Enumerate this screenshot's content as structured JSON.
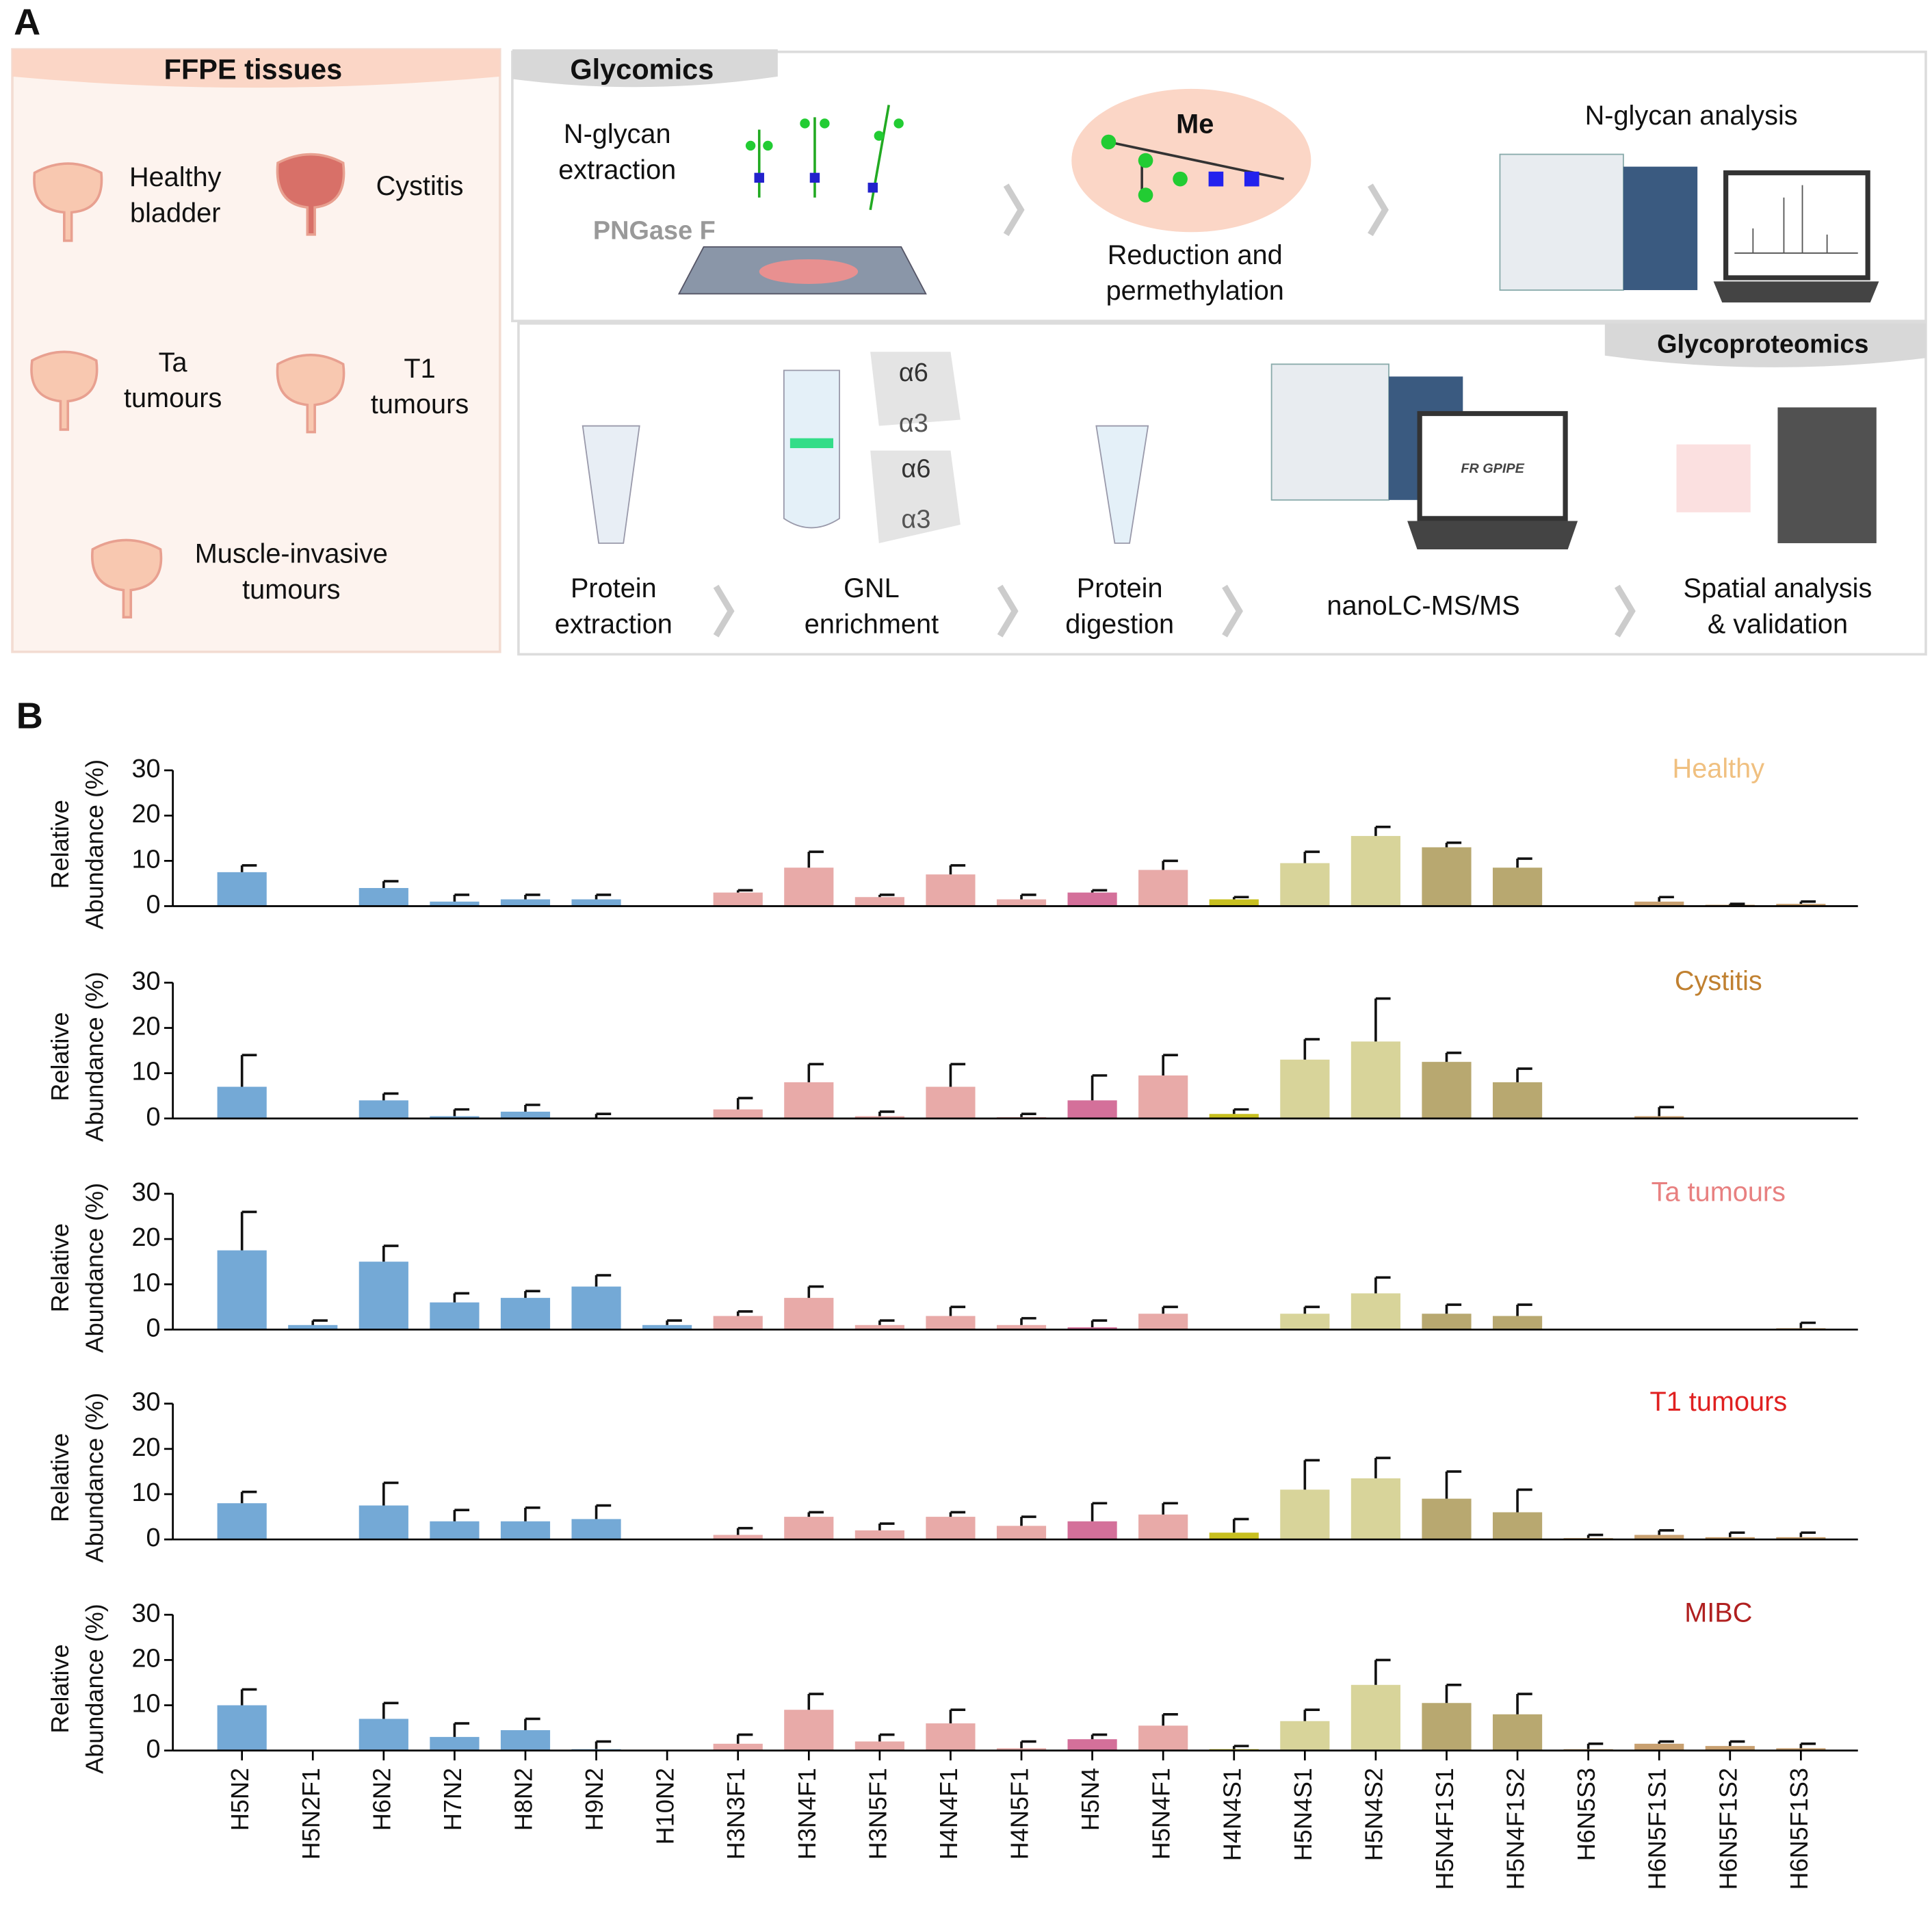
{
  "panel_a": {
    "label": "A",
    "tissues": {
      "title": "FFPE tissues",
      "groups": [
        [
          "Healthy",
          "bladder"
        ],
        [
          "Cystitis"
        ],
        [
          "Ta",
          "tumours"
        ],
        [
          "T1",
          "tumours"
        ],
        [
          "Muscle-invasive",
          "tumours"
        ]
      ]
    },
    "glycomics": {
      "title": "Glycomics",
      "steps": [
        [
          "N-glycan",
          "extraction"
        ],
        [
          "Reduction and",
          "permethylation"
        ],
        [
          "N-glycan analysis"
        ]
      ],
      "enzyme": "PNGase F",
      "reagent": "Me"
    },
    "glycoproteomics": {
      "title": "Glycoproteomics",
      "steps": [
        [
          "Protein",
          "extraction"
        ],
        [
          "GNL",
          "enrichment"
        ],
        [
          "Protein",
          "digestion"
        ],
        [
          "nanoLC-MS/MS"
        ],
        [
          "Spatial analysis",
          "& validation"
        ]
      ],
      "linkages": [
        "α6",
        "α3",
        "α6",
        "α3"
      ],
      "software": "FR GPIPE"
    }
  },
  "panel_b_label": "B",
  "x_axis": {
    "categories": [
      "H5N2",
      "H5N2F1",
      "H6N2",
      "H7N2",
      "H8N2",
      "H9N2",
      "H10N2",
      "H3N3F1",
      "H3N4F1",
      "H3N5F1",
      "H4N4F1",
      "H4N5F1",
      "H5N4",
      "H5N4F1",
      "H4N4S1",
      "H5N4S1",
      "H5N4S2",
      "H5N4F1S1",
      "H5N4F1S2",
      "H6N5S3",
      "H6N5F1S1",
      "H6N5F1S2",
      "H6N5F1S3"
    ],
    "colors": [
      "#74a9d6",
      "#74a9d6",
      "#74a9d6",
      "#74a9d6",
      "#74a9d6",
      "#74a9d6",
      "#74a9d6",
      "#e8aaa8",
      "#e8aaa8",
      "#e8aaa8",
      "#e8aaa8",
      "#e8aaa8",
      "#d4709a",
      "#e8aaa8",
      "#c8c020",
      "#d8d49a",
      "#d8d49a",
      "#b8a870",
      "#b8a870",
      "#c8a070",
      "#c8a070",
      "#c8a070",
      "#c8a070"
    ]
  },
  "chart_data": [
    {
      "type": "bar",
      "title": "Healthy",
      "title_color": "#f0c080",
      "ylabel": [
        "Relative",
        "Abundance (%)"
      ],
      "ylim": [
        0,
        30
      ],
      "yticks": [
        0,
        10,
        20,
        30
      ],
      "values": [
        7.5,
        0,
        4,
        1,
        1.5,
        1.5,
        0,
        3,
        8.5,
        2,
        7,
        1.5,
        3,
        8,
        1.5,
        9.5,
        15.5,
        13,
        8.5,
        0,
        1,
        0.3,
        0.5
      ],
      "errors": [
        1.5,
        0,
        1.5,
        1.5,
        1,
        1,
        0,
        0.5,
        3.5,
        0.5,
        2,
        1,
        0.5,
        2,
        0.5,
        2.5,
        2,
        1,
        2,
        0,
        1,
        0.2,
        0.5
      ]
    },
    {
      "type": "bar",
      "title": "Cystitis",
      "title_color": "#c08030",
      "ylabel": [
        "Relative",
        "Abundance (%)"
      ],
      "ylim": [
        0,
        30
      ],
      "yticks": [
        0,
        10,
        20,
        30
      ],
      "values": [
        7,
        0,
        4,
        0.5,
        1.5,
        0.2,
        0,
        2,
        8,
        0.5,
        7,
        0.3,
        4,
        9.5,
        1,
        13,
        17,
        12.5,
        8,
        0,
        0.5,
        0,
        0
      ],
      "errors": [
        7,
        0,
        1.5,
        1.5,
        1.5,
        0.8,
        0,
        2.5,
        4,
        1,
        5,
        0.7,
        5.5,
        4.5,
        1,
        4.5,
        9.5,
        2,
        3,
        0,
        2,
        0,
        0
      ]
    },
    {
      "type": "bar",
      "title": "Ta tumours",
      "title_color": "#e88080",
      "ylabel": [
        "Relative",
        "Abundance (%)"
      ],
      "ylim": [
        0,
        30
      ],
      "yticks": [
        0,
        10,
        20,
        30
      ],
      "values": [
        17.5,
        1,
        15,
        6,
        7,
        9.5,
        1,
        3,
        7,
        1,
        3,
        1,
        0.5,
        3.5,
        0,
        3.5,
        8,
        3.5,
        3,
        0,
        0,
        0,
        0.3
      ],
      "errors": [
        8.5,
        1,
        3.5,
        2,
        1.5,
        2.5,
        1,
        1,
        2.5,
        1,
        2,
        1.5,
        1.5,
        1.5,
        0,
        1.5,
        3.5,
        2,
        2.5,
        0,
        0,
        0,
        1.2
      ]
    },
    {
      "type": "bar",
      "title": "T1 tumours",
      "title_color": "#e02020",
      "ylabel": [
        "Relative",
        "Abundance (%)"
      ],
      "ylim": [
        0,
        30
      ],
      "yticks": [
        0,
        10,
        20,
        30
      ],
      "values": [
        8,
        0,
        7.5,
        4,
        4,
        4.5,
        0,
        1,
        5,
        2,
        5,
        3,
        4,
        5.5,
        1.5,
        11,
        13.5,
        9,
        6,
        0.3,
        1,
        0.5,
        0.5
      ],
      "errors": [
        2.5,
        0,
        5,
        2.5,
        3,
        3,
        0,
        1.5,
        1,
        1.5,
        1,
        2,
        4,
        2.5,
        3,
        6.5,
        4.5,
        6,
        5,
        0.7,
        1,
        1,
        1
      ]
    },
    {
      "type": "bar",
      "title": "MIBC",
      "title_color": "#b02020",
      "ylabel": [
        "Relative",
        "Abundance (%)"
      ],
      "ylim": [
        0,
        30
      ],
      "yticks": [
        0,
        10,
        20,
        30
      ],
      "values": [
        10,
        0,
        7,
        3,
        4.5,
        0.3,
        0,
        1.5,
        9,
        2,
        6,
        0.5,
        2.5,
        5.5,
        0.3,
        6.5,
        14.5,
        10.5,
        8,
        0.3,
        1.5,
        1,
        0.5
      ],
      "errors": [
        3.5,
        0,
        3.5,
        3,
        2.5,
        1.7,
        0,
        2,
        3.5,
        1.5,
        3,
        1.5,
        1,
        2.5,
        0.7,
        2.5,
        5.5,
        4,
        4.5,
        1.2,
        0.5,
        1,
        1
      ]
    }
  ]
}
